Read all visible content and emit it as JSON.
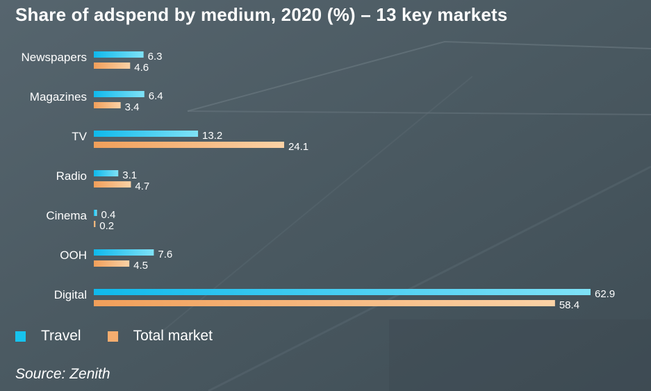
{
  "title": "Share of adspend by medium, 2020 (%) – 13 key markets",
  "source": "Source: Zenith",
  "colors": {
    "travel": "#17c3ee",
    "total_market": "#f5ad6f",
    "background": "#4b5a63",
    "text": "#ffffff"
  },
  "chart_data": {
    "type": "bar",
    "orientation": "horizontal",
    "categories": [
      "Newspapers",
      "Magazines",
      "TV",
      "Radio",
      "Cinema",
      "OOH",
      "Digital"
    ],
    "series": [
      {
        "name": "Travel",
        "values": [
          6.3,
          6.4,
          13.2,
          3.1,
          0.4,
          7.6,
          62.9
        ]
      },
      {
        "name": "Total market",
        "values": [
          4.6,
          3.4,
          24.1,
          4.7,
          0.2,
          4.5,
          58.4
        ]
      }
    ],
    "xlim": [
      0,
      62.9
    ],
    "grid": false,
    "legend_position": "bottom-left",
    "data_labels": true
  },
  "legend": {
    "items": [
      {
        "label": "Travel"
      },
      {
        "label": "Total market"
      }
    ]
  }
}
